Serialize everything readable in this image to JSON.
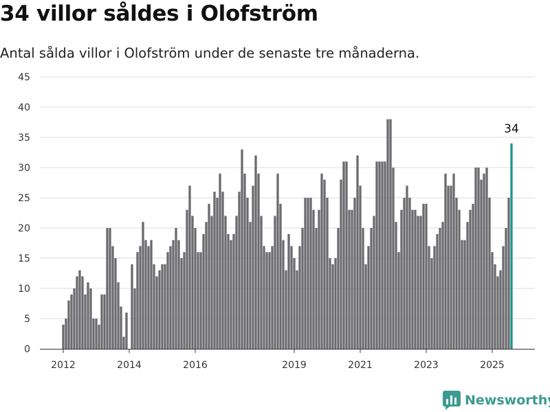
{
  "header": {
    "title": "34 villor såldes i Olofström",
    "subtitle": "Antal sålda villor i Olofström under de senaste tre månaderna."
  },
  "brand": {
    "name": "Newsworthy"
  },
  "colors": {
    "bar": "#6b6a6f",
    "highlight": "#1d958c",
    "grid": "#dcdcdc"
  },
  "chart_data": {
    "type": "bar",
    "title": "34 villor såldes i Olofström",
    "subtitle": "Antal sålda villor i Olofström under de senaste tre månaderna.",
    "xlabel": "",
    "ylabel": "",
    "ylim": [
      0,
      45
    ],
    "yticks": [
      0,
      5,
      10,
      15,
      20,
      25,
      30,
      35,
      40,
      45
    ],
    "xticks": [
      {
        "label": "2012",
        "month_index": 0
      },
      {
        "label": "2014",
        "month_index": 24
      },
      {
        "label": "2016",
        "month_index": 48
      },
      {
        "label": "2019",
        "month_index": 84
      },
      {
        "label": "2021",
        "month_index": 108
      },
      {
        "label": "2023",
        "month_index": 132
      },
      {
        "label": "2025",
        "month_index": 156
      }
    ],
    "grid": true,
    "series": [
      {
        "values": [
          4,
          5,
          8,
          9,
          10,
          12,
          13,
          12,
          9,
          11,
          10,
          5,
          5,
          4,
          9,
          9,
          20,
          20,
          17,
          15,
          11,
          7,
          2,
          6,
          0,
          14,
          10,
          16,
          17,
          21,
          18,
          17,
          18,
          14,
          12,
          13,
          14,
          14,
          16,
          17,
          18,
          20,
          18,
          15,
          16,
          23,
          27,
          22,
          20,
          16,
          16,
          19,
          21,
          24,
          22,
          26,
          25,
          29,
          26,
          22,
          19,
          18,
          19,
          22,
          26,
          33,
          29,
          25,
          21,
          27,
          32,
          29,
          22,
          17,
          16,
          16,
          17,
          22,
          29,
          24,
          18,
          13,
          19,
          17,
          15,
          13,
          17,
          20,
          25,
          25,
          25,
          23,
          20,
          23,
          29,
          28,
          25,
          15,
          14,
          15,
          20,
          28,
          31,
          31,
          23,
          23,
          25,
          32,
          27,
          20,
          14,
          17,
          20,
          22,
          31,
          31,
          31,
          31,
          38,
          38,
          30,
          21,
          16,
          23,
          25,
          27,
          25,
          23,
          23,
          22,
          22,
          24,
          24,
          17,
          15,
          17,
          19,
          20,
          21,
          29,
          27,
          27,
          29,
          25,
          23,
          18,
          18,
          21,
          23,
          24,
          30,
          30,
          28,
          29,
          30,
          25,
          16,
          14,
          12,
          13,
          17,
          20,
          25,
          34
        ]
      }
    ],
    "last_value_label": "34"
  }
}
